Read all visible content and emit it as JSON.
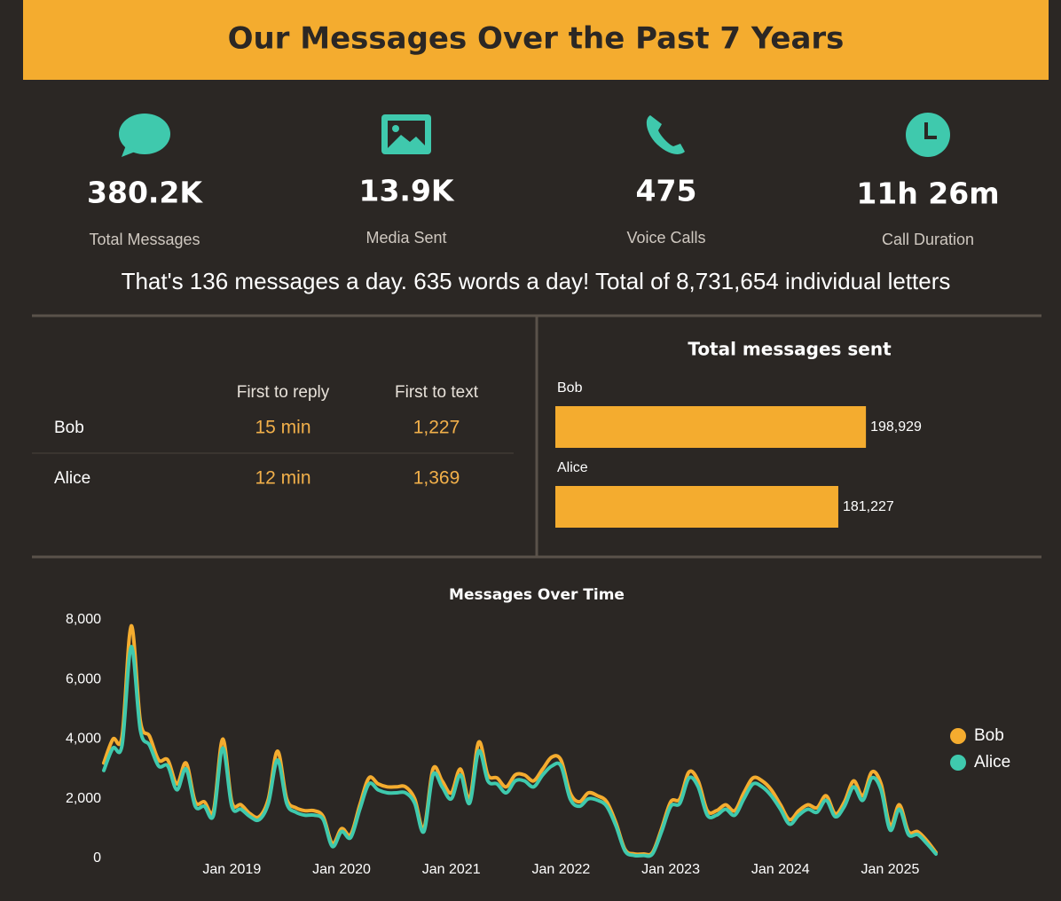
{
  "header": {
    "title": "Our Messages Over the Past 7 Years"
  },
  "stats": [
    {
      "value": "380.2K",
      "label": "Total Messages"
    },
    {
      "value": "13.9K",
      "label": "Media Sent"
    },
    {
      "value": "475",
      "label": "Voice Calls"
    },
    {
      "value": "11h 26m",
      "label": "Call Duration"
    }
  ],
  "summary": "That's 136 messages a day. 635 words a day! Total of 8,731,654 individual letters",
  "table": {
    "columns": [
      "First to reply",
      "First to text"
    ],
    "rows": [
      [
        "Bob",
        "15 min",
        "1,227"
      ],
      [
        "Alice",
        "12 min",
        "1,369"
      ]
    ]
  },
  "chart_data": [
    {
      "type": "hbar",
      "title": "Total messages sent",
      "categories": [
        "Bob",
        "Alice"
      ],
      "values": [
        198929,
        181227
      ],
      "value_labels": [
        "198,929",
        "181,227"
      ],
      "color": "#f4ac2f",
      "xlim": [
        0,
        300000
      ]
    },
    {
      "type": "line",
      "title": "Messages Over Time",
      "x": [
        "2017-11",
        "2017-12",
        "2018-01",
        "2018-02",
        "2018-03",
        "2018-04",
        "2018-05",
        "2018-06",
        "2018-07",
        "2018-08",
        "2018-09",
        "2018-10",
        "2018-11",
        "2018-12",
        "2019-01",
        "2019-02",
        "2019-03",
        "2019-04",
        "2019-05",
        "2019-06",
        "2019-07",
        "2019-08",
        "2019-09",
        "2019-10",
        "2019-11",
        "2019-12",
        "2020-01",
        "2020-02",
        "2020-03",
        "2020-04",
        "2020-05",
        "2020-06",
        "2020-07",
        "2020-08",
        "2020-09",
        "2020-10",
        "2020-11",
        "2020-12",
        "2021-01",
        "2021-02",
        "2021-03",
        "2021-04",
        "2021-05",
        "2021-06",
        "2021-07",
        "2021-08",
        "2021-09",
        "2021-10",
        "2021-11",
        "2021-12",
        "2022-01",
        "2022-02",
        "2022-03",
        "2022-04",
        "2022-05",
        "2022-06",
        "2022-07",
        "2022-08",
        "2022-09",
        "2022-10",
        "2022-11",
        "2022-12",
        "2023-01",
        "2023-02",
        "2023-03",
        "2023-04",
        "2023-05",
        "2023-06",
        "2023-07",
        "2023-08",
        "2023-09",
        "2023-10",
        "2023-11",
        "2023-12",
        "2024-01",
        "2024-02",
        "2024-03",
        "2024-04",
        "2024-05",
        "2024-06",
        "2024-07",
        "2024-08",
        "2024-09",
        "2024-10",
        "2024-11",
        "2024-12",
        "2025-01",
        "2025-02",
        "2025-03",
        "2025-04",
        "2025-05",
        "2025-06"
      ],
      "series": [
        {
          "name": "Bob",
          "color": "#f4ac2f",
          "values": [
            3200,
            4000,
            4100,
            7800,
            4600,
            4100,
            3300,
            3300,
            2500,
            3200,
            1900,
            1900,
            1600,
            4000,
            1900,
            1800,
            1500,
            1400,
            2000,
            3600,
            2000,
            1700,
            1600,
            1600,
            1400,
            500,
            1000,
            800,
            1800,
            2700,
            2500,
            2400,
            2400,
            2400,
            2000,
            1000,
            3000,
            2600,
            2200,
            3000,
            2000,
            3900,
            2800,
            2700,
            2400,
            2800,
            2800,
            2600,
            3000,
            3400,
            3300,
            2200,
            1900,
            2200,
            2100,
            1900,
            1200,
            300,
            150,
            150,
            200,
            1000,
            1900,
            2000,
            2900,
            2600,
            1600,
            1600,
            1800,
            1600,
            2200,
            2700,
            2600,
            2300,
            1800,
            1300,
            1600,
            1800,
            1700,
            2100,
            1500,
            1900,
            2600,
            2100,
            2900,
            2500,
            1100,
            1800,
            900,
            900,
            600,
            200
          ]
        },
        {
          "name": "Alice",
          "color": "#3fc9ad",
          "values": [
            2950,
            3700,
            3800,
            7100,
            4300,
            3800,
            3100,
            3100,
            2300,
            3000,
            1750,
            1750,
            1450,
            3700,
            1750,
            1650,
            1400,
            1300,
            1850,
            3300,
            1850,
            1550,
            1450,
            1450,
            1300,
            400,
            900,
            700,
            1650,
            2500,
            2300,
            2200,
            2200,
            2200,
            1850,
            900,
            2800,
            2400,
            2000,
            2800,
            1850,
            3600,
            2600,
            2500,
            2200,
            2600,
            2600,
            2400,
            2800,
            3100,
            3100,
            2000,
            1750,
            2000,
            1950,
            1750,
            1100,
            250,
            100,
            100,
            150,
            900,
            1750,
            1850,
            2700,
            2400,
            1450,
            1450,
            1650,
            1450,
            2000,
            2500,
            2400,
            2100,
            1650,
            1150,
            1450,
            1650,
            1550,
            1950,
            1400,
            1750,
            2400,
            1950,
            2700,
            2300,
            950,
            1650,
            800,
            800,
            500,
            150
          ]
        }
      ],
      "xlim": [
        "2017-11",
        "2025-06"
      ],
      "xticks": [
        {
          "value": "2019-01",
          "label": "Jan 2019"
        },
        {
          "value": "2020-01",
          "label": "Jan 2020"
        },
        {
          "value": "2021-01",
          "label": "Jan 2021"
        },
        {
          "value": "2022-01",
          "label": "Jan 2022"
        },
        {
          "value": "2023-01",
          "label": "Jan 2023"
        },
        {
          "value": "2024-01",
          "label": "Jan 2024"
        },
        {
          "value": "2025-01",
          "label": "Jan 2025"
        }
      ],
      "ylim": [
        0,
        8000
      ],
      "yticks": [
        0,
        {
          "value": 2000,
          "label": "2,000"
        },
        {
          "value": 4000,
          "label": "4,000"
        },
        {
          "value": 6000,
          "label": "6,000"
        },
        {
          "value": 8000,
          "label": "8,000"
        }
      ],
      "grid": false,
      "legend": "right"
    }
  ]
}
